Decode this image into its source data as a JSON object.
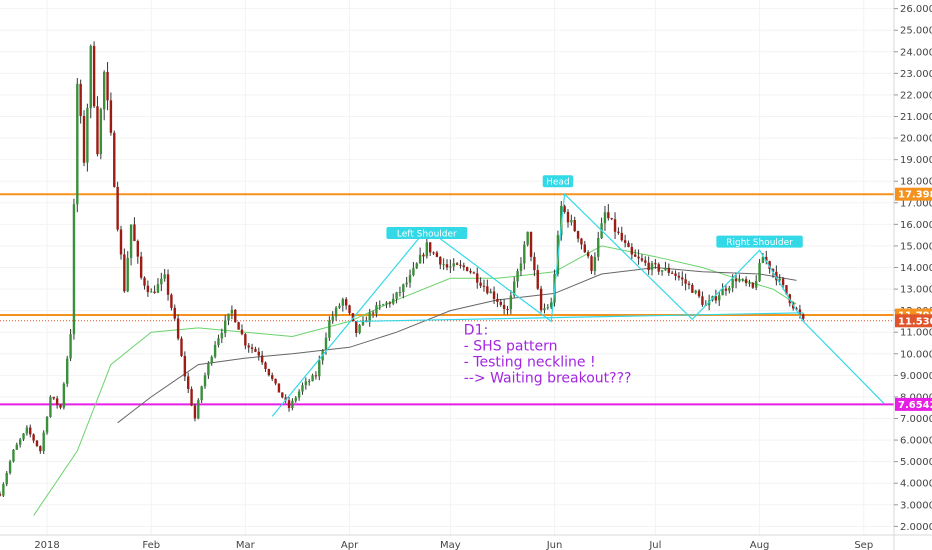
{
  "chart_data": {
    "type": "candlestick",
    "timeframe": "D1",
    "x_axis_labels": [
      "2018",
      "Feb",
      "Mar",
      "Apr",
      "May",
      "Jun",
      "Jul",
      "Aug",
      "Sep"
    ],
    "y_ticks": [
      "2.0000",
      "3.0000",
      "4.0000",
      "5.0000",
      "6.0000",
      "7.0000",
      "8.0000",
      "9.0000",
      "10.0000",
      "11.0000",
      "12.0000",
      "13.0000",
      "14.0000",
      "15.0000",
      "16.0000",
      "17.0000",
      "18.0000",
      "19.0000",
      "20.0000",
      "21.0000",
      "22.0000",
      "23.0000",
      "24.0000",
      "25.0000",
      "26.0000"
    ],
    "ylim": [
      1.6,
      26.4
    ],
    "date_range": [
      "2017-12-18",
      "2018-09-10"
    ],
    "horizontal_levels": [
      {
        "value": 17.3984,
        "label": "17.3984",
        "color": "#f5921e"
      },
      {
        "value": 11.7956,
        "label": "11.7956",
        "color": "#f5921e"
      },
      {
        "value": 7.6542,
        "label": "7.6542",
        "color": "#e61ee6"
      }
    ],
    "last_price": {
      "value": 11.5302,
      "label": "11.5302",
      "color": "#e0542c"
    },
    "pattern": {
      "color": "#33d9e6",
      "labels": [
        {
          "text": "Left Shoulder",
          "date": "2018-04-24",
          "value": 15.6
        },
        {
          "text": "Head",
          "date": "2018-06-02",
          "value": 18.0
        },
        {
          "text": "Right Shoulder",
          "date": "2018-08-01",
          "value": 15.2
        }
      ],
      "zigzag": [
        [
          "2018-03-09",
          7.1
        ],
        [
          "2018-04-24",
          15.8
        ],
        [
          "2018-05-31",
          11.5
        ],
        [
          "2018-06-04",
          17.4
        ],
        [
          "2018-07-12",
          11.6
        ],
        [
          "2018-08-01",
          14.8
        ],
        [
          "2018-08-14",
          11.5
        ],
        [
          "2018-09-07",
          7.7
        ]
      ],
      "neckline": [
        [
          "2018-04-03",
          11.5
        ],
        [
          "2018-08-14",
          11.9
        ]
      ]
    },
    "annotation": [
      "D1:",
      "- SHS pattern",
      "- Testing neckline !",
      "--> Waiting breakout???"
    ],
    "moving_averages": [
      {
        "color": "#6ad36a",
        "points": [
          [
            "2017-12-28",
            2.5
          ],
          [
            "2018-01-10",
            5.5
          ],
          [
            "2018-01-20",
            9.5
          ],
          [
            "2018-02-01",
            11.0
          ],
          [
            "2018-02-15",
            11.2
          ],
          [
            "2018-03-01",
            11.0
          ],
          [
            "2018-03-15",
            10.8
          ],
          [
            "2018-04-01",
            11.5
          ],
          [
            "2018-04-15",
            12.5
          ],
          [
            "2018-05-01",
            13.5
          ],
          [
            "2018-05-15",
            13.5
          ],
          [
            "2018-06-01",
            13.8
          ],
          [
            "2018-06-15",
            15.0
          ],
          [
            "2018-07-01",
            14.5
          ],
          [
            "2018-07-15",
            14.0
          ],
          [
            "2018-07-25",
            13.5
          ],
          [
            "2018-08-05",
            13.0
          ],
          [
            "2018-08-12",
            12.3
          ]
        ]
      },
      {
        "color": "#666666",
        "points": [
          [
            "2018-01-22",
            6.8
          ],
          [
            "2018-02-01",
            8.0
          ],
          [
            "2018-02-15",
            9.5
          ],
          [
            "2018-03-01",
            9.8
          ],
          [
            "2018-03-15",
            10.0
          ],
          [
            "2018-04-01",
            10.3
          ],
          [
            "2018-04-15",
            11.0
          ],
          [
            "2018-05-01",
            12.0
          ],
          [
            "2018-05-15",
            12.5
          ],
          [
            "2018-06-01",
            12.8
          ],
          [
            "2018-06-15",
            13.7
          ],
          [
            "2018-07-01",
            14.0
          ],
          [
            "2018-07-15",
            13.8
          ],
          [
            "2018-08-01",
            13.7
          ],
          [
            "2018-08-12",
            13.4
          ]
        ]
      }
    ],
    "anchors": [
      [
        "2017-12-18",
        3.5
      ],
      [
        "2017-12-22",
        5.5
      ],
      [
        "2017-12-26",
        6.5
      ],
      [
        "2017-12-30",
        5.5
      ],
      [
        "2018-01-02",
        8.0
      ],
      [
        "2018-01-05",
        7.5
      ],
      [
        "2018-01-08",
        11.0
      ],
      [
        "2018-01-10",
        22.5
      ],
      [
        "2018-01-12",
        19.0
      ],
      [
        "2018-01-14",
        24.0
      ],
      [
        "2018-01-16",
        19.5
      ],
      [
        "2018-01-18",
        23.0
      ],
      [
        "2018-01-20",
        20.0
      ],
      [
        "2018-01-22",
        16.0
      ],
      [
        "2018-01-24",
        13.0
      ],
      [
        "2018-01-26",
        16.0
      ],
      [
        "2018-01-29",
        13.5
      ],
      [
        "2018-02-01",
        12.8
      ],
      [
        "2018-02-05",
        13.5
      ],
      [
        "2018-02-08",
        11.5
      ],
      [
        "2018-02-11",
        9.0
      ],
      [
        "2018-02-14",
        7.0
      ],
      [
        "2018-02-16",
        8.5
      ],
      [
        "2018-02-20",
        10.5
      ],
      [
        "2018-02-25",
        12.0
      ],
      [
        "2018-03-01",
        10.5
      ],
      [
        "2018-03-05",
        10.0
      ],
      [
        "2018-03-10",
        8.5
      ],
      [
        "2018-03-14",
        7.5
      ],
      [
        "2018-03-18",
        8.5
      ],
      [
        "2018-03-22",
        9.0
      ],
      [
        "2018-03-26",
        11.5
      ],
      [
        "2018-03-30",
        12.5
      ],
      [
        "2018-04-03",
        11.0
      ],
      [
        "2018-04-08",
        12.0
      ],
      [
        "2018-04-14",
        12.5
      ],
      [
        "2018-04-19",
        13.5
      ],
      [
        "2018-04-24",
        15.0
      ],
      [
        "2018-04-30",
        14.0
      ],
      [
        "2018-05-06",
        14.0
      ],
      [
        "2018-05-12",
        13.0
      ],
      [
        "2018-05-18",
        12.0
      ],
      [
        "2018-05-24",
        15.5
      ],
      [
        "2018-05-28",
        12.0
      ],
      [
        "2018-05-31",
        12.3
      ],
      [
        "2018-06-03",
        16.8
      ],
      [
        "2018-06-08",
        15.5
      ],
      [
        "2018-06-12",
        14.0
      ],
      [
        "2018-06-16",
        16.5
      ],
      [
        "2018-06-20",
        15.5
      ],
      [
        "2018-06-24",
        14.5
      ],
      [
        "2018-06-30",
        14.0
      ],
      [
        "2018-07-06",
        13.8
      ],
      [
        "2018-07-12",
        13.0
      ],
      [
        "2018-07-16",
        12.2
      ],
      [
        "2018-07-20",
        12.8
      ],
      [
        "2018-07-25",
        13.5
      ],
      [
        "2018-07-30",
        13.0
      ],
      [
        "2018-08-02",
        14.5
      ],
      [
        "2018-08-06",
        13.6
      ],
      [
        "2018-08-10",
        12.5
      ],
      [
        "2018-08-14",
        11.5
      ]
    ]
  }
}
